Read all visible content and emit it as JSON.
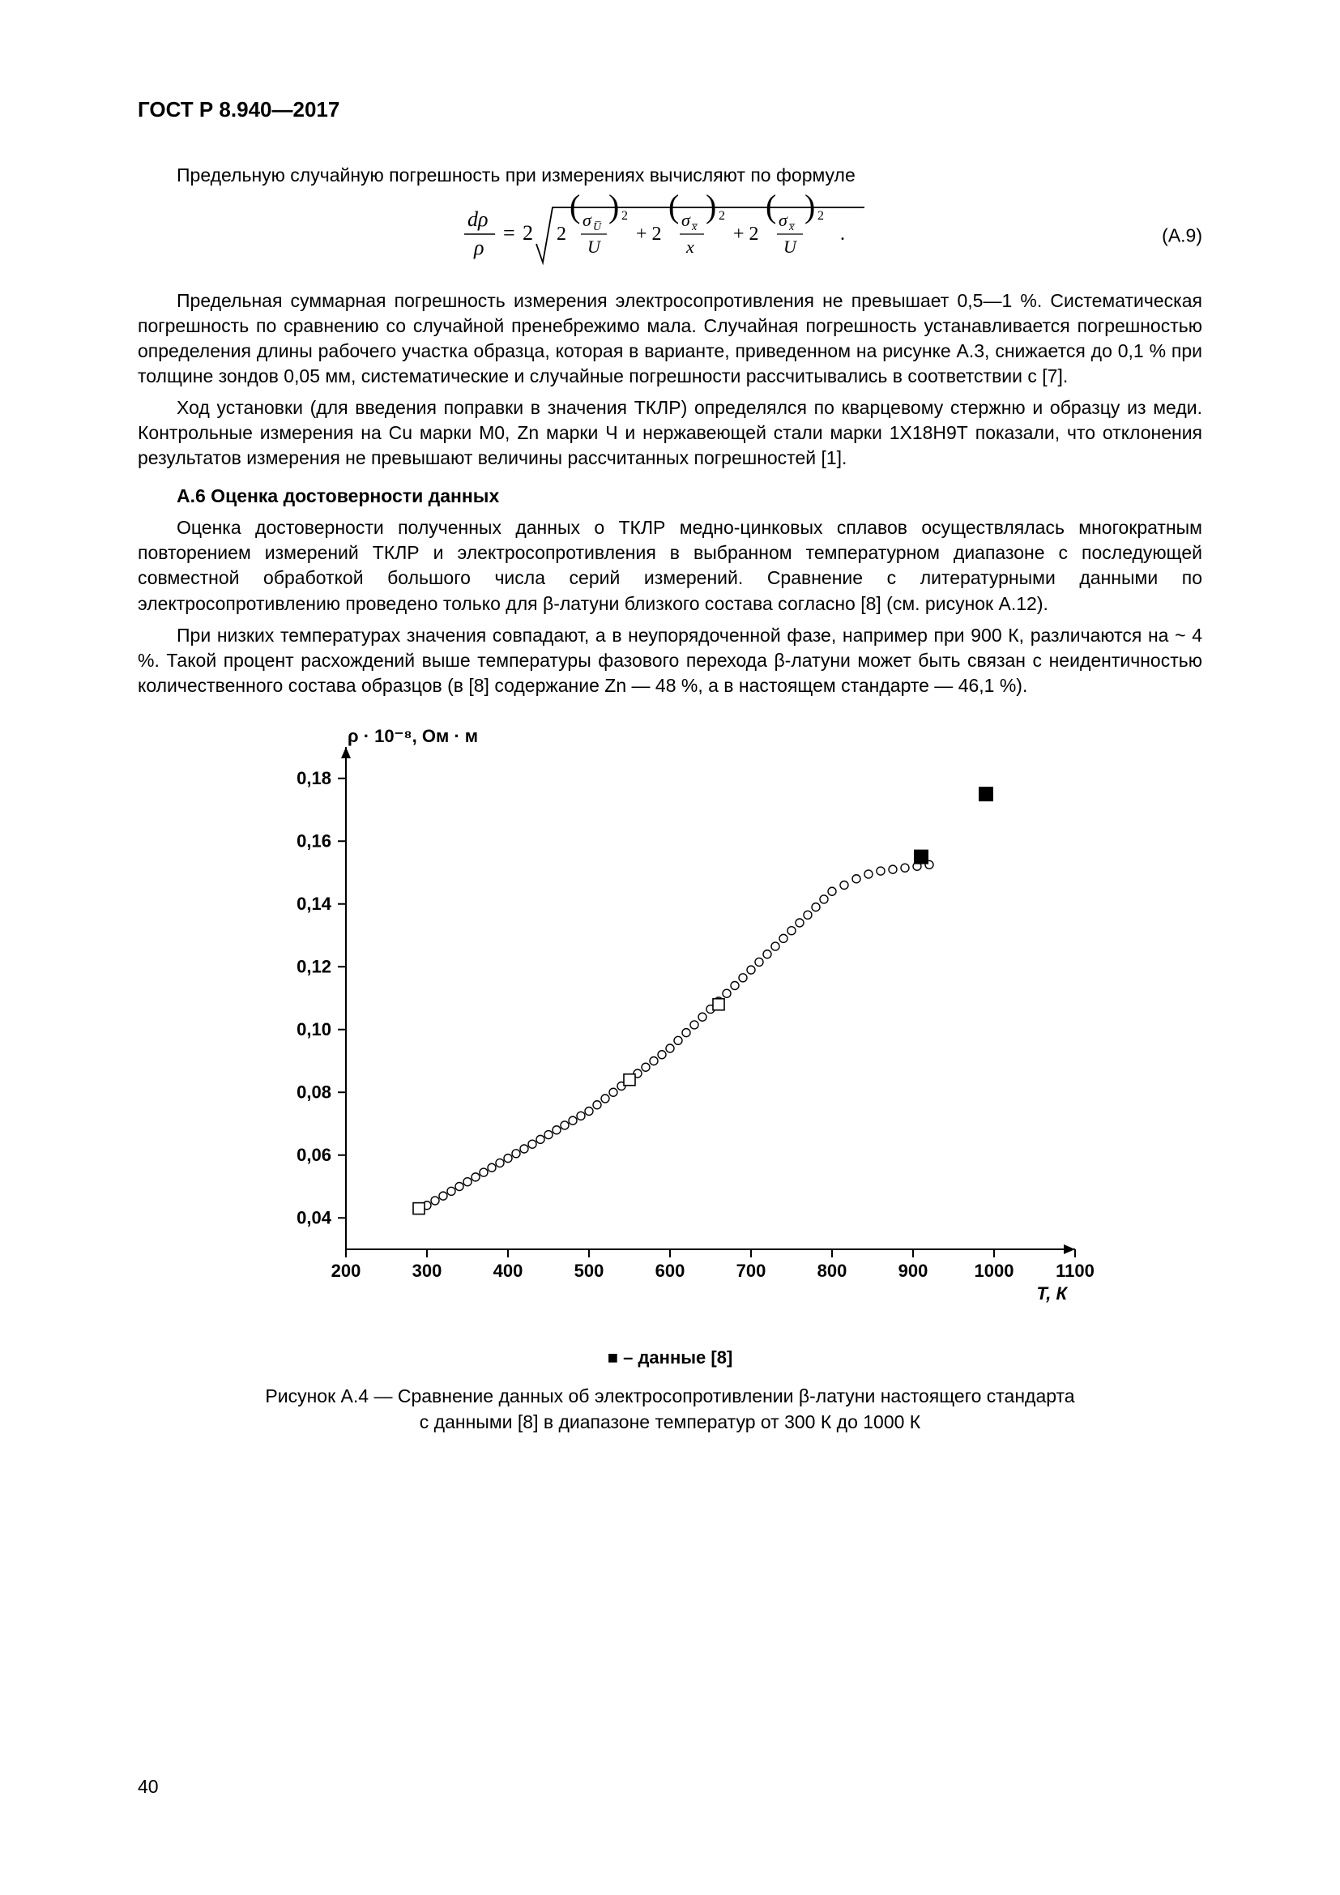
{
  "doc_header": "ГОСТ Р 8.940—2017",
  "page_number": "40",
  "intro_line": "Предельную случайную погрешность при измерениях вычисляют по формуле",
  "eq_number": "(A.9)",
  "para2": "Предельная суммарная погрешность измерения электросопротивления не превышает 0,5—1 %. Систематическая погрешность по сравнению со случайной пренебрежимо мала. Случайная погрешность устанавливается погрешностью определения длины рабочего участка образца, которая в варианте, приведенном на рисунке А.3, снижается до 0,1 % при толщине зондов 0,05 мм, систематические и случайные погрешности рассчитывались в соответствии с [7].",
  "para3": "Ход установки (для введения поправки в значения ТКЛР) определялся по кварцевому стержню и образцу из меди. Контрольные измерения на Cu марки М0, Zn марки Ч и нержавеющей стали марки 1Х18Н9Т показали, что отклонения результатов измерения не превышают величины рассчитанных погрешностей [1].",
  "section_a6_title": "А.6  Оценка достоверности данных",
  "para4": "Оценка достоверности полученных данных о ТКЛР медно-цинковых сплавов осуществлялась многократным повторением измерений ТКЛР и электросопротивления в выбранном температурном диапазоне с последующей совместной обработкой большого числа серий измерений. Сравнение с литературными данными по электросопротивлению проведено только для β-латуни близкого состава согласно [8] (см. рисунок А.12).",
  "para5": "При низких температурах значения совпадают, а в неупорядоченной фазе, например при 900 К, различаются на ~ 4 %. Такой процент расхождений выше температуры фазового перехода β-латуни может быть связан с неидентичностью количественного состава образцов (в [8] содержание Zn — 48 %, а в настоящем стандарте — 46,1 %).",
  "chart": {
    "type": "scatter",
    "y_axis_label": "ρ · 10⁻⁸, Ом · м",
    "x_axis_label": "T, К",
    "xlim": [
      200,
      1100
    ],
    "ylim": [
      0.03,
      0.19
    ],
    "xticks": [
      200,
      300,
      400,
      500,
      600,
      700,
      800,
      900,
      1000,
      1100
    ],
    "yticks": [
      0.04,
      0.06,
      0.08,
      0.1,
      0.12,
      0.14,
      0.16,
      0.18
    ],
    "ytick_labels": [
      "0,04",
      "0,06",
      "0,08",
      "0,10",
      "0,12",
      "0,14",
      "0,16",
      "0,18"
    ],
    "background_color": "#ffffff",
    "axis_color": "#000000",
    "series_open": {
      "marker": "open-circle",
      "marker_size": 5,
      "stroke": "#000000",
      "fill": "#ffffff",
      "points": [
        [
          300,
          0.044
        ],
        [
          310,
          0.0455
        ],
        [
          320,
          0.047
        ],
        [
          330,
          0.0485
        ],
        [
          340,
          0.05
        ],
        [
          350,
          0.0515
        ],
        [
          360,
          0.053
        ],
        [
          370,
          0.0545
        ],
        [
          380,
          0.056
        ],
        [
          390,
          0.0575
        ],
        [
          400,
          0.059
        ],
        [
          410,
          0.0605
        ],
        [
          420,
          0.062
        ],
        [
          430,
          0.0635
        ],
        [
          440,
          0.065
        ],
        [
          450,
          0.0665
        ],
        [
          460,
          0.068
        ],
        [
          470,
          0.0695
        ],
        [
          480,
          0.071
        ],
        [
          490,
          0.0725
        ],
        [
          500,
          0.074
        ],
        [
          510,
          0.076
        ],
        [
          520,
          0.078
        ],
        [
          530,
          0.08
        ],
        [
          540,
          0.082
        ],
        [
          550,
          0.084
        ],
        [
          560,
          0.086
        ],
        [
          570,
          0.088
        ],
        [
          580,
          0.09
        ],
        [
          590,
          0.092
        ],
        [
          600,
          0.094
        ],
        [
          610,
          0.0965
        ],
        [
          620,
          0.099
        ],
        [
          630,
          0.1015
        ],
        [
          640,
          0.104
        ],
        [
          650,
          0.1065
        ],
        [
          660,
          0.109
        ],
        [
          670,
          0.1115
        ],
        [
          680,
          0.114
        ],
        [
          690,
          0.1165
        ],
        [
          700,
          0.119
        ],
        [
          710,
          0.1215
        ],
        [
          720,
          0.124
        ],
        [
          730,
          0.1265
        ],
        [
          740,
          0.129
        ],
        [
          750,
          0.1315
        ],
        [
          760,
          0.134
        ],
        [
          770,
          0.1365
        ],
        [
          780,
          0.139
        ],
        [
          790,
          0.1415
        ],
        [
          800,
          0.144
        ],
        [
          815,
          0.146
        ],
        [
          830,
          0.148
        ],
        [
          845,
          0.1495
        ],
        [
          860,
          0.1505
        ],
        [
          875,
          0.151
        ],
        [
          890,
          0.1515
        ],
        [
          905,
          0.152
        ],
        [
          920,
          0.1525
        ]
      ]
    },
    "series_open_square": {
      "marker": "open-square",
      "marker_size": 7,
      "stroke": "#000000",
      "fill": "#ffffff",
      "points": [
        [
          290,
          0.043
        ],
        [
          550,
          0.084
        ],
        [
          660,
          0.108
        ]
      ]
    },
    "series_solid_square": {
      "marker": "solid-square",
      "marker_size": 9,
      "fill": "#000000",
      "points": [
        [
          910,
          0.155
        ],
        [
          990,
          0.175
        ]
      ]
    },
    "legend_text": "■ – данные [8]"
  },
  "figure_caption_line1": "Рисунок А.4 — Сравнение данных об электросопротивлении β-латуни настоящего стандарта",
  "figure_caption_line2": "с данными [8] в диапазоне температур от 300 К до 1000 К"
}
